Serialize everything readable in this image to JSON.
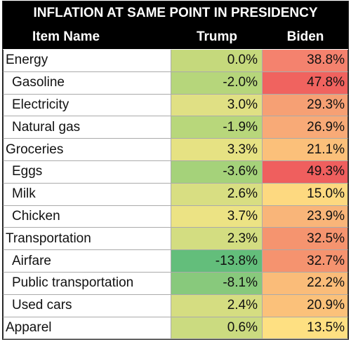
{
  "title": "INFLATION AT SAME POINT IN PRESIDENCY",
  "header": [
    "Item Name",
    "Trump",
    "Biden"
  ],
  "groups": [
    {
      "row": {
        "name": "Energy",
        "trump": "0.0%",
        "biden": "38.8%",
        "trump_color": "#c5d97c",
        "biden_color": "#f4826e"
      },
      "items": [
        {
          "name": "Gasoline",
          "trump": "-2.0%",
          "biden": "47.8%",
          "trump_color": "#b6d67b",
          "biden_color": "#f0635f"
        },
        {
          "name": "Electricity",
          "trump": "3.0%",
          "biden": "29.3%",
          "trump_color": "#e0e084",
          "biden_color": "#f6a074"
        },
        {
          "name": "Natural gas",
          "trump": "-1.9%",
          "biden": "26.9%",
          "trump_color": "#b8d77b",
          "biden_color": "#f8aa77"
        }
      ]
    },
    {
      "row": {
        "name": "Groceries",
        "trump": "3.3%",
        "biden": "21.1%",
        "trump_color": "#e6e283",
        "biden_color": "#fbc07a"
      },
      "items": [
        {
          "name": "Eggs",
          "trump": "-3.6%",
          "biden": "49.3%",
          "trump_color": "#a5d27a",
          "biden_color": "#ef5f5e"
        },
        {
          "name": "Milk",
          "trump": "2.6%",
          "biden": "15.0%",
          "trump_color": "#d8de82",
          "biden_color": "#fdd980"
        },
        {
          "name": "Chicken",
          "trump": "3.7%",
          "biden": "23.9%",
          "trump_color": "#ece384",
          "biden_color": "#f9b579"
        }
      ]
    },
    {
      "row": {
        "name": "Transportation",
        "trump": "2.3%",
        "biden": "32.5%",
        "trump_color": "#d3dd81",
        "biden_color": "#f5946f"
      },
      "items": [
        {
          "name": "Airfare",
          "trump": "-13.8%",
          "biden": "32.7%",
          "trump_color": "#63be7b",
          "biden_color": "#f5936f"
        },
        {
          "name": "Public transportation",
          "trump": "-8.1%",
          "biden": "22.2%",
          "trump_color": "#88c97c",
          "biden_color": "#fabc79"
        },
        {
          "name": "Used cars",
          "trump": "2.4%",
          "biden": "20.9%",
          "trump_color": "#d5dd81",
          "biden_color": "#fbc17a"
        }
      ]
    },
    {
      "row": {
        "name": "Apparel",
        "trump": "0.6%",
        "biden": "13.5%",
        "trump_color": "#cbdb80",
        "biden_color": "#fee082"
      },
      "items": []
    }
  ]
}
